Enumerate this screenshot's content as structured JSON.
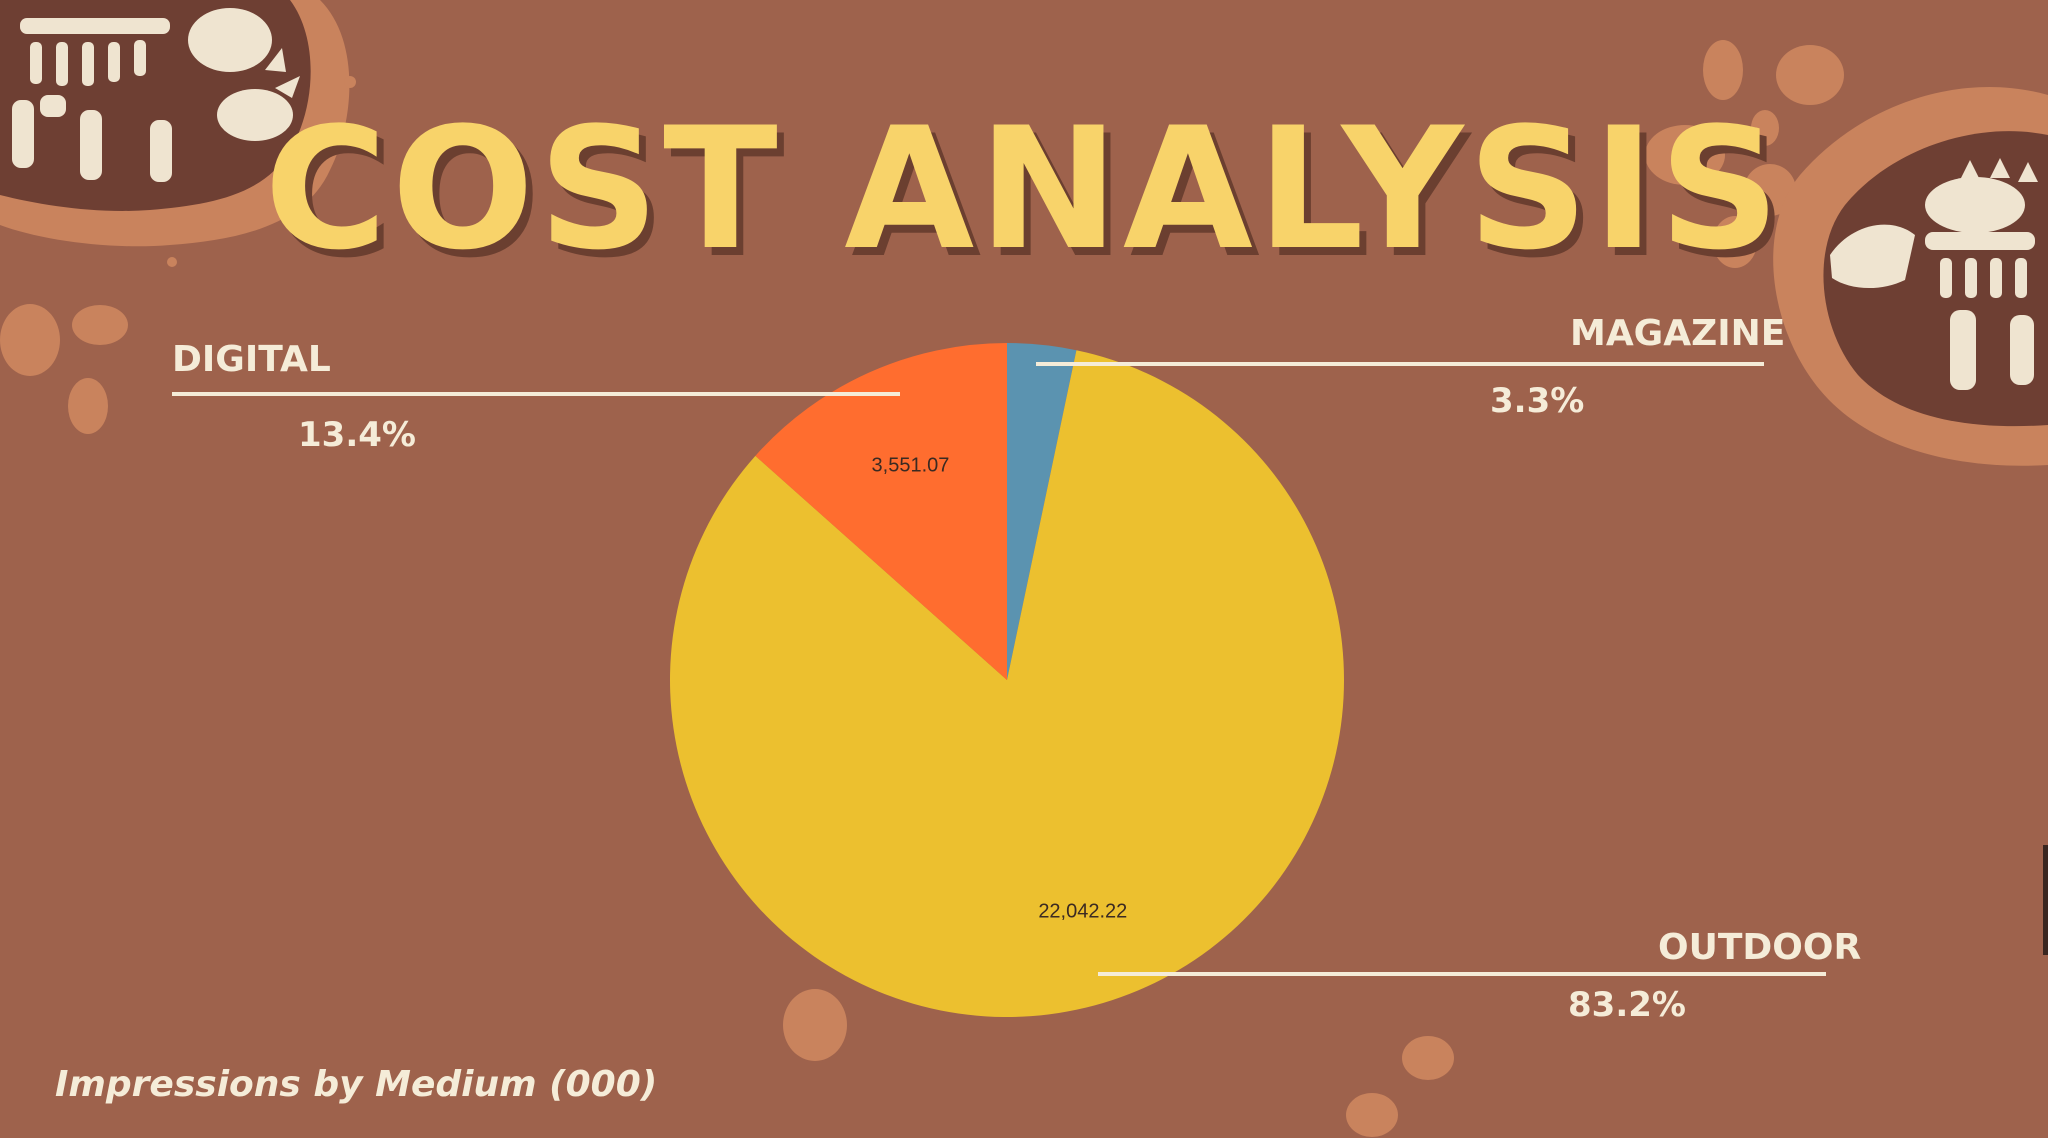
{
  "page": {
    "title": "COST ANALYSIS",
    "subtitle": "Impressions by Medium (000)"
  },
  "chart_data": {
    "type": "pie",
    "title": "",
    "slices": [
      {
        "name": "MAGAZINE",
        "percent_label": "3.3%",
        "value": 874.0,
        "value_label": "",
        "color": "#5b93b0"
      },
      {
        "name": "OUTDOOR",
        "percent_label": "83.2%",
        "value": 22042.22,
        "value_label": "22,042.22",
        "color": "#ecc02f"
      },
      {
        "name": "DIGITAL",
        "percent_label": "13.4%",
        "value": 3551.07,
        "value_label": "3,551.07",
        "color": "#ff6d2f"
      }
    ]
  },
  "colors": {
    "background": "#9e624c",
    "title": "#f8d36a",
    "text": "#f5ecd8",
    "decoration": "#c9835d"
  },
  "decorations": {
    "top_left": "triceratops-fossil-icon",
    "top_right": "ankylosaurus-fossil-icon"
  }
}
